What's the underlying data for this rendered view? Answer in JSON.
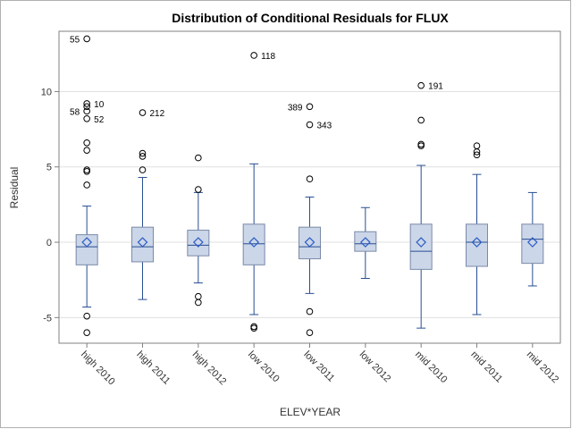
{
  "chart_data": {
    "type": "box",
    "title": "Distribution of Conditional Residuals for FLUX",
    "xlabel": "ELEV*YEAR",
    "ylabel": "Residual",
    "ylim": [
      -6.7,
      14.0
    ],
    "yticks": [
      -5,
      0,
      5,
      10
    ],
    "grid": true,
    "colors": {
      "box_fill": "#cbd6e8",
      "line": "#284e92",
      "grid": "#e0e0e0",
      "outlier": "#000000"
    },
    "categories": [
      "high 2010",
      "high 2011",
      "high 2012",
      "low 2010",
      "low 2011",
      "low 2012",
      "mid 2010",
      "mid 2011",
      "mid 2012"
    ],
    "boxes": [
      {
        "q1": -1.5,
        "median": -0.3,
        "q3": 0.5,
        "mean": 0.0,
        "whisker_low": -4.3,
        "whisker_high": 2.4,
        "outliers": [
          13.5,
          9.2,
          9.0,
          8.7,
          8.2,
          6.6,
          6.1,
          4.8,
          4.7,
          3.8,
          -4.9,
          -6.0
        ],
        "outlier_labels": [
          {
            "text": "55",
            "y": 13.5,
            "side": "left"
          },
          {
            "text": "10",
            "y": 9.2,
            "side": "right"
          },
          {
            "text": "58",
            "y": 8.7,
            "side": "left"
          },
          {
            "text": "52",
            "y": 8.2,
            "side": "right"
          }
        ]
      },
      {
        "q1": -1.3,
        "median": -0.3,
        "q3": 1.0,
        "mean": 0.0,
        "whisker_low": -3.8,
        "whisker_high": 4.3,
        "outliers": [
          8.6,
          5.9,
          5.7,
          4.8
        ],
        "outlier_labels": [
          {
            "text": "212",
            "y": 8.6,
            "side": "right"
          }
        ]
      },
      {
        "q1": -0.9,
        "median": -0.2,
        "q3": 0.8,
        "mean": 0.0,
        "whisker_low": -2.7,
        "whisker_high": 3.3,
        "outliers": [
          5.6,
          3.5,
          -3.6,
          -4.0
        ],
        "outlier_labels": []
      },
      {
        "q1": -1.5,
        "median": -0.1,
        "q3": 1.2,
        "mean": 0.0,
        "whisker_low": -4.8,
        "whisker_high": 5.2,
        "outliers": [
          12.4,
          -5.6,
          -5.7
        ],
        "outlier_labels": [
          {
            "text": "118",
            "y": 12.4,
            "side": "right"
          }
        ]
      },
      {
        "q1": -1.1,
        "median": -0.3,
        "q3": 1.0,
        "mean": 0.0,
        "whisker_low": -3.4,
        "whisker_high": 3.0,
        "outliers": [
          9.0,
          7.8,
          4.2,
          -4.6,
          -6.0
        ],
        "outlier_labels": [
          {
            "text": "389",
            "y": 9.0,
            "side": "left"
          },
          {
            "text": "343",
            "y": 7.8,
            "side": "right"
          }
        ]
      },
      {
        "q1": -0.6,
        "median": -0.1,
        "q3": 0.7,
        "mean": 0.0,
        "whisker_low": -2.4,
        "whisker_high": 2.3,
        "outliers": [],
        "outlier_labels": []
      },
      {
        "q1": -1.8,
        "median": -0.6,
        "q3": 1.2,
        "mean": 0.0,
        "whisker_low": -5.7,
        "whisker_high": 5.1,
        "outliers": [
          10.4,
          8.1,
          6.5,
          6.4
        ],
        "outlier_labels": [
          {
            "text": "191",
            "y": 10.4,
            "side": "right"
          }
        ]
      },
      {
        "q1": -1.6,
        "median": 0.0,
        "q3": 1.2,
        "mean": 0.0,
        "whisker_low": -4.8,
        "whisker_high": 4.5,
        "outliers": [
          6.4,
          6.0,
          5.8
        ],
        "outlier_labels": []
      },
      {
        "q1": -1.4,
        "median": 0.2,
        "q3": 1.2,
        "mean": 0.0,
        "whisker_low": -2.9,
        "whisker_high": 3.3,
        "outliers": [],
        "outlier_labels": []
      }
    ]
  }
}
